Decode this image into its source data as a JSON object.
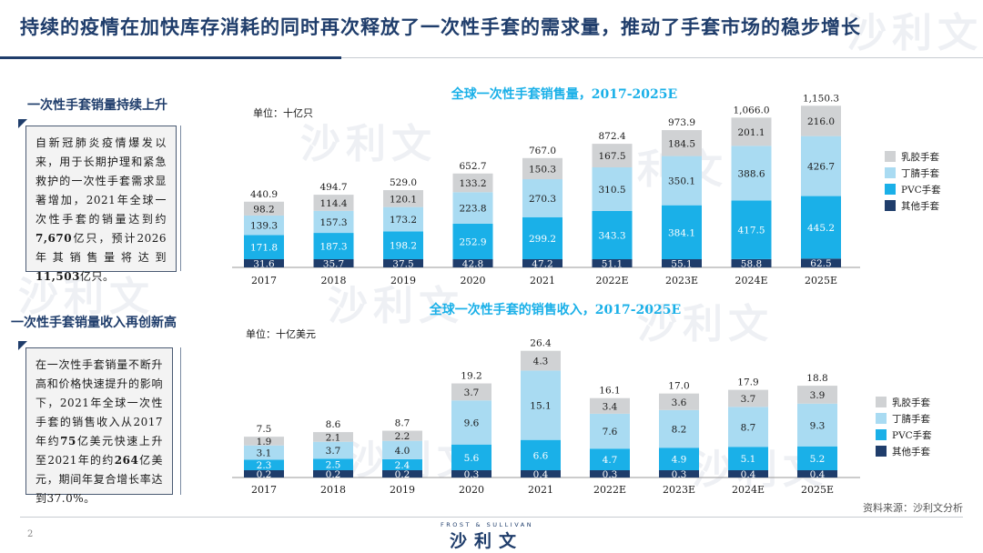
{
  "header": {
    "title": "持续的疫情在加快库存消耗的同时再次释放了一次性手套的需求量，推动了手套市场的稳步增长"
  },
  "colors": {
    "natural_latex": "#d0d2d4",
    "nitrile": "#a9dbf2",
    "pvc": "#1ab0e8",
    "other": "#1f3d6b",
    "brand": "#1f3d6b"
  },
  "section1": {
    "heading": "一次性手套销量持续上升",
    "p1": "自新冠肺炎疫情爆发以来，用于长期护理和紧急救护的一次性手套需求显著增加，2021年全球一次性手套的销量达到约",
    "b1": "7,670",
    "p2": "亿只，预计2026年其销售量将达到",
    "b2": "11,503",
    "p3": "亿只。"
  },
  "section2": {
    "heading": "一次性手套销量收入再创新高",
    "p1": "在一次性手套销量不断升高和价格快速提升的影响下，2021年全球一次性手套的销售收入从2017年约",
    "b1": "75",
    "p2": "亿美元快速上升至2021年的约",
    "b2": "264",
    "p3": "亿美元，期间年复合增长率达到37.0%。"
  },
  "chart_data": [
    {
      "type": "bar",
      "stacked": true,
      "title": "全球一次性手套销售量，2017-2025E",
      "unit": "单位：十亿只",
      "categories": [
        "2017",
        "2018",
        "2019",
        "2020",
        "2021",
        "2022E",
        "2023E",
        "2024E",
        "2025E"
      ],
      "series": [
        {
          "name": "其他手套",
          "values": [
            31.6,
            35.7,
            37.5,
            42.8,
            47.2,
            51.1,
            55.1,
            58.8,
            62.5
          ],
          "labels": [
            "31.6",
            "35.7",
            "37.5",
            "42.8",
            "47.2",
            "51.1",
            "55.1",
            "58.8",
            "62.5"
          ]
        },
        {
          "name": "PVC手套",
          "values": [
            171.8,
            187.3,
            198.2,
            252.9,
            299.2,
            343.3,
            384.1,
            417.5,
            445.2
          ],
          "labels": [
            "171.8",
            "187.3",
            "198.2",
            "252.9",
            "299.2",
            "343.3",
            "384.1",
            "417.5",
            "445.2"
          ]
        },
        {
          "name": "丁腈手套",
          "values": [
            139.3,
            157.3,
            173.2,
            223.8,
            270.3,
            310.5,
            350.1,
            388.6,
            426.7
          ],
          "labels": [
            "139.3",
            "157.3",
            "173.2",
            "223.8",
            "270.3",
            "310.5",
            "350.1",
            "388.6",
            "426.7"
          ]
        },
        {
          "name": "乳胶手套",
          "values": [
            98.2,
            114.4,
            120.1,
            133.2,
            150.3,
            167.5,
            184.5,
            201.1,
            216.0
          ],
          "labels": [
            "98.2",
            "114.4",
            "120.1",
            "133.2",
            "150.3",
            "167.5",
            "184.5",
            "201.1",
            "216.0"
          ]
        }
      ],
      "totals": [
        "440.9",
        "494.7",
        "529.0",
        "652.7",
        "767.0",
        "872.4",
        "973.9",
        "1,066.0",
        "1,150.3"
      ],
      "legend_order": [
        "乳胶手套",
        "丁腈手套",
        "PVC手套",
        "其他手套"
      ],
      "legend_position": "right"
    },
    {
      "type": "bar",
      "stacked": true,
      "title": "全球一次性手套的销售收入，2017-2025E",
      "unit": "单位：十亿美元",
      "categories": [
        "2017",
        "2018",
        "2019",
        "2020",
        "2021",
        "2022E",
        "2023E",
        "2024E",
        "2025E"
      ],
      "series": [
        {
          "name": "其他手套",
          "values": [
            0.2,
            0.2,
            0.2,
            0.3,
            0.4,
            0.3,
            0.3,
            0.4,
            0.4
          ],
          "labels": [
            "0.2",
            "0.2",
            "0.2",
            "0.3",
            "0.4",
            "0.3",
            "0.3",
            "0.4",
            "0.4"
          ]
        },
        {
          "name": "PVC手套",
          "values": [
            2.3,
            2.5,
            2.4,
            5.6,
            6.6,
            4.7,
            4.9,
            5.1,
            5.2
          ],
          "labels": [
            "2.3",
            "2.5",
            "2.4",
            "5.6",
            "6.6",
            "4.7",
            "4.9",
            "5.1",
            "5.2"
          ]
        },
        {
          "name": "丁腈手套",
          "values": [
            3.1,
            3.7,
            4.0,
            9.6,
            15.1,
            7.6,
            8.2,
            8.7,
            9.3
          ],
          "labels": [
            "3.1",
            "3.7",
            "4.0",
            "9.6",
            "15.1",
            "7.6",
            "8.2",
            "8.7",
            "9.3"
          ]
        },
        {
          "name": "乳胶手套",
          "values": [
            1.9,
            2.1,
            2.2,
            3.7,
            4.3,
            3.4,
            3.6,
            3.7,
            3.9
          ],
          "labels": [
            "1.9",
            "2.1",
            "2.2",
            "3.7",
            "4.3",
            "3.4",
            "3.6",
            "3.7",
            "3.9"
          ]
        }
      ],
      "totals": [
        "7.5",
        "8.6",
        "8.7",
        "19.2",
        "26.4",
        "16.1",
        "17.0",
        "17.9",
        "18.8"
      ],
      "legend_order": [
        "乳胶手套",
        "丁腈手套",
        "PVC手套",
        "其他手套"
      ],
      "legend_position": "right"
    }
  ],
  "footer": {
    "source": "资料来源：沙利文分析",
    "page": "2",
    "logo_small": "FROST & SULLIVAN",
    "logo_big": "沙利文"
  }
}
